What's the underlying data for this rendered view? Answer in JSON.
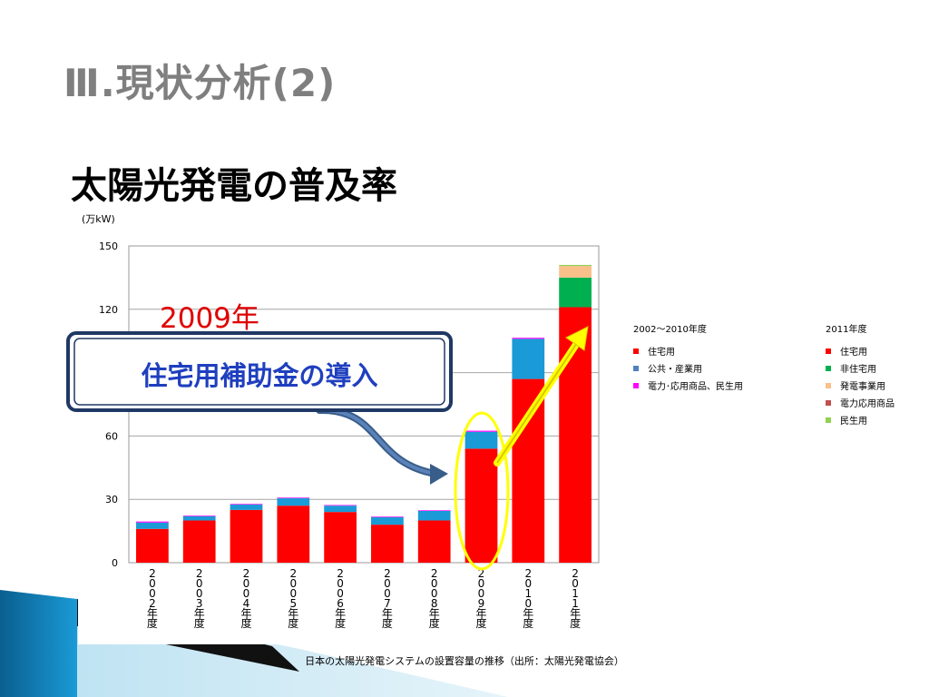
{
  "slide": {
    "title": "Ⅲ.現状分析(2)",
    "subtitle": "太陽光発電の普及率"
  },
  "chart_data": {
    "type": "bar",
    "stacked": true,
    "unit_label": "(万kW)",
    "categories": [
      "2002年度",
      "2003年度",
      "2004年度",
      "2005年度",
      "2006年度",
      "2007年度",
      "2008年度",
      "2009年度",
      "2010年度",
      "2011年度"
    ],
    "category_digits": [
      [
        "2",
        "0",
        "0",
        "2"
      ],
      [
        "2",
        "0",
        "0",
        "3"
      ],
      [
        "2",
        "0",
        "0",
        "4"
      ],
      [
        "2",
        "0",
        "0",
        "5"
      ],
      [
        "2",
        "0",
        "0",
        "6"
      ],
      [
        "2",
        "0",
        "0",
        "7"
      ],
      [
        "2",
        "0",
        "0",
        "8"
      ],
      [
        "2",
        "0",
        "0",
        "9"
      ],
      [
        "2",
        "0",
        "1",
        "0"
      ],
      [
        "2",
        "0",
        "1",
        "1"
      ]
    ],
    "category_suffix": [
      "年",
      "度"
    ],
    "ylim": [
      0,
      150
    ],
    "yticks": [
      0,
      30,
      60,
      90,
      120,
      150
    ],
    "grid": true,
    "series": [
      {
        "name": "住宅用",
        "color": "#ff0000",
        "values": [
          16,
          20,
          25,
          27,
          24,
          18,
          20,
          54,
          87,
          121
        ]
      },
      {
        "name": "公共・産業用",
        "color": "#1a9ad6",
        "values": [
          3,
          2,
          2.5,
          3.5,
          3,
          3.5,
          4.5,
          8,
          19,
          0
        ]
      },
      {
        "name": "電力･応用商品、民生用",
        "color": "#ff00ff",
        "values": [
          0.5,
          0.3,
          0.3,
          0.3,
          0.3,
          0.3,
          0.3,
          0.5,
          0.5,
          0
        ]
      },
      {
        "name": "非住宅用",
        "color": "#00b050",
        "values": [
          0,
          0,
          0,
          0,
          0,
          0,
          0,
          0,
          0,
          14
        ]
      },
      {
        "name": "発電事業用",
        "color": "#f9c08a",
        "values": [
          0,
          0,
          0,
          0,
          0,
          0,
          0,
          0,
          0,
          5.5
        ]
      },
      {
        "name": "民生用",
        "color": "#92d050",
        "values": [
          0,
          0,
          0,
          0,
          0,
          0,
          0,
          0,
          0,
          0.5
        ]
      }
    ],
    "legend_a": {
      "title": "2002〜2010年度",
      "items": [
        {
          "name": "住宅用",
          "color": "#ff0000"
        },
        {
          "name": "公共・産業用",
          "color": "#4f81bd"
        },
        {
          "name": "電力･応用商品、民生用",
          "color": "#ff00ff"
        }
      ]
    },
    "legend_b": {
      "title": "2011年度",
      "items": [
        {
          "name": "住宅用",
          "color": "#ff0000"
        },
        {
          "name": "非住宅用",
          "color": "#00b050"
        },
        {
          "name": "発電事業用",
          "color": "#f9c08a"
        },
        {
          "name": "電力応用商品",
          "color": "#c0504d"
        },
        {
          "name": "民生用",
          "color": "#92d050"
        }
      ]
    },
    "annotations": {
      "year_label": "2009年",
      "callout": "住宅用補助金の導入",
      "highlight_category": "2009年度"
    },
    "caption": "日本の太陽光発電システムの設置容量の推移（出所：太陽光発電協会）"
  },
  "colors": {
    "title_gray": "#7f7f7f",
    "annotation_red": "#e00000",
    "callout_navy": "#1f3864",
    "callout_text": "#1f3fbf",
    "highlight_yellow": "#ffff00",
    "arrow_blue": "#385d8a"
  }
}
